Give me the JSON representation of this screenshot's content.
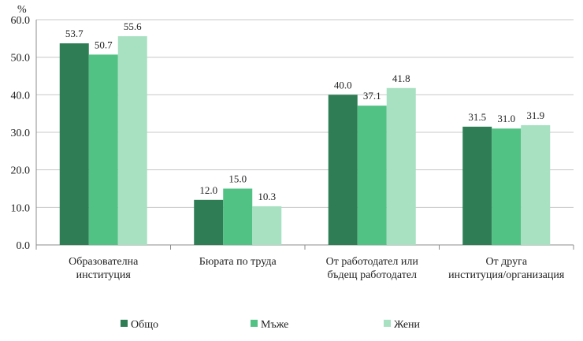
{
  "chart_data": {
    "type": "bar",
    "ylabel": "%",
    "ylim": [
      0,
      60
    ],
    "yticks": [
      "0.0",
      "10.0",
      "20.0",
      "30.0",
      "40.0",
      "50.0",
      "60.0"
    ],
    "grid": true,
    "legend_position": "bottom",
    "categories": [
      [
        "Образователна",
        "институция"
      ],
      [
        "Бюрата по труда"
      ],
      [
        "От работодател или",
        "бъдещ работодател"
      ],
      [
        "От друга",
        "институция/организация"
      ]
    ],
    "series": [
      {
        "name": "Общо",
        "color": "#2e7d55",
        "values": [
          53.7,
          12.0,
          40.0,
          31.5
        ],
        "labels": [
          "53.7",
          "12.0",
          "40.0",
          "31.5"
        ]
      },
      {
        "name": "Мъже",
        "color": "#52c184",
        "values": [
          50.7,
          15.0,
          37.1,
          31.0
        ],
        "labels": [
          "50.7",
          "15.0",
          "37.1",
          "31.0"
        ]
      },
      {
        "name": "Жени",
        "color": "#a8e0c2",
        "values": [
          55.6,
          10.3,
          41.8,
          31.9
        ],
        "labels": [
          "55.6",
          "10.3",
          "41.8",
          "31.9"
        ]
      }
    ]
  }
}
